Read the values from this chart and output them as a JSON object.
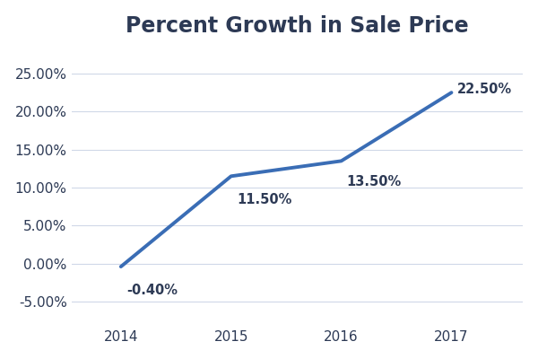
{
  "title": "Percent Growth in Sale Price",
  "years": [
    2014,
    2015,
    2016,
    2017
  ],
  "values": [
    -0.004,
    0.115,
    0.135,
    0.225
  ],
  "labels": [
    "-0.40%",
    "11.50%",
    "13.50%",
    "22.50%"
  ],
  "line_color": "#3A6DB5",
  "line_width": 2.8,
  "ylim": [
    -0.075,
    0.285
  ],
  "yticks": [
    -0.05,
    0.0,
    0.05,
    0.1,
    0.15,
    0.2,
    0.25
  ],
  "xlim": [
    2013.55,
    2017.65
  ],
  "background_color": "#FFFFFF",
  "title_fontsize": 17,
  "title_color": "#2D3A55",
  "label_fontsize": 10.5,
  "label_color": "#2D3A55",
  "tick_color": "#2D3A55",
  "tick_fontsize": 11,
  "grid_color": "#D0D8E8",
  "grid_linewidth": 0.8
}
